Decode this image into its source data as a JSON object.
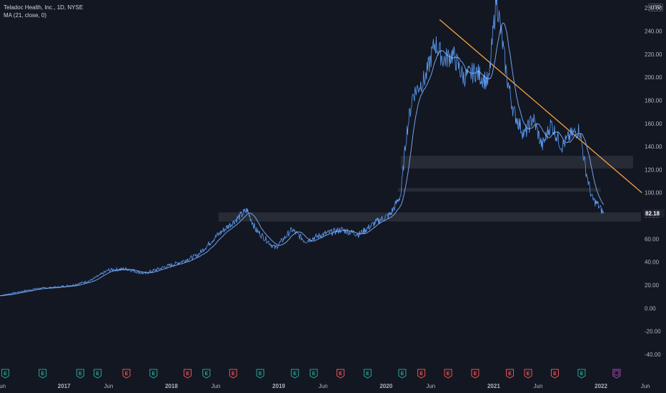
{
  "header": {
    "symbol_line": "Teladoc Health, Inc., 1D, NYSE",
    "indicator_line": "MA (21, close, 0)",
    "currency": "USD"
  },
  "chart_data": {
    "type": "line",
    "title": "Teladoc Health, Inc., 1D, NYSE",
    "series": [
      {
        "name": "",
        "color": "#5b9cf6",
        "x": [
          "2016-06-01",
          "2016-08-01",
          "2016-10-01",
          "2016-12-01",
          "2017-02-01",
          "2017-04-01",
          "2017-06-01",
          "2017-08-01",
          "2017-10-01",
          "2017-12-01",
          "2018-02-01",
          "2018-04-01",
          "2018-06-01",
          "2018-08-01",
          "2018-09-15",
          "2018-10-15",
          "2018-12-20",
          "2019-02-15",
          "2019-04-01",
          "2019-06-01",
          "2019-08-01",
          "2019-10-01",
          "2019-12-01",
          "2020-01-15",
          "2020-02-20",
          "2020-03-10",
          "2020-04-01",
          "2020-05-15",
          "2020-06-15",
          "2020-07-15",
          "2020-08-15",
          "2020-09-20",
          "2020-11-01",
          "2020-12-15",
          "2021-01-10",
          "2021-02-15",
          "2021-03-10",
          "2021-04-15",
          "2021-05-15",
          "2021-06-15",
          "2021-07-15",
          "2021-08-20",
          "2021-09-20",
          "2021-10-20",
          "2021-11-10",
          "2021-12-01",
          "2021-12-20",
          "2022-01-10"
        ],
        "y": [
          11,
          14,
          17,
          18,
          20,
          24,
          33,
          34,
          30,
          35,
          40,
          46,
          62,
          75,
          85,
          68,
          52,
          68,
          58,
          64,
          68,
          64,
          75,
          81,
          98,
          150,
          185,
          200,
          230,
          215,
          220,
          200,
          205,
          195,
          270,
          200,
          170,
          150,
          165,
          140,
          160,
          140,
          150,
          155,
          120,
          95,
          90,
          82
        ]
      }
    ],
    "ma_label": "MA (21, close, 0)",
    "yticks": [
      "-40.00",
      "-20.00",
      "0.00",
      "20.00",
      "40.00",
      "60.00",
      "80.00",
      "100.00",
      "120.00",
      "140.00",
      "160.00",
      "180.00",
      "200.00",
      "220.00",
      "240.00",
      "260.00"
    ],
    "xticks": [
      "Jun",
      "2017",
      "Jun",
      "2018",
      "Jun",
      "2019",
      "Jun",
      "2020",
      "Jun",
      "2021",
      "Jun",
      "2022",
      "Jun"
    ],
    "ylim": [
      -45,
      262
    ],
    "current_price": "82.18",
    "current_value": 82.18,
    "trendline": {
      "from": [
        "2020-07-01",
        250
      ],
      "to": [
        "2022-05-20",
        100
      ],
      "color": "#f7a23a"
    },
    "zones": [
      {
        "x_from": "2018-06-10",
        "x_to": "2022-12-31",
        "y_from": 75,
        "y_to": 83
      },
      {
        "x_from": "2020-02-20",
        "x_to": "2022-04-20",
        "y_from": 121,
        "y_to": 132
      },
      {
        "x_from": "2020-02-10",
        "x_to": "2021-12-31",
        "y_from": 101,
        "y_to": 104
      }
    ],
    "earnings": [
      {
        "date": "2016-06-15",
        "label": "E",
        "type": "positive"
      },
      {
        "date": "2016-10-20",
        "label": "E",
        "type": "positive"
      },
      {
        "date": "2017-02-25",
        "label": "E",
        "type": "positive"
      },
      {
        "date": "2017-04-25",
        "label": "E",
        "type": "positive"
      },
      {
        "date": "2017-08-01",
        "label": "E",
        "type": "negative"
      },
      {
        "date": "2017-11-01",
        "label": "E",
        "type": "positive"
      },
      {
        "date": "2018-02-25",
        "label": "E",
        "type": "negative"
      },
      {
        "date": "2018-04-30",
        "label": "E",
        "type": "positive"
      },
      {
        "date": "2018-07-30",
        "label": "E",
        "type": "negative"
      },
      {
        "date": "2018-10-30",
        "label": "E",
        "type": "positive"
      },
      {
        "date": "2019-02-25",
        "label": "E",
        "type": "positive"
      },
      {
        "date": "2019-04-30",
        "label": "E",
        "type": "positive"
      },
      {
        "date": "2019-07-30",
        "label": "E",
        "type": "negative"
      },
      {
        "date": "2019-10-30",
        "label": "E",
        "type": "positive"
      },
      {
        "date": "2020-02-25",
        "label": "E",
        "type": "positive"
      },
      {
        "date": "2020-04-30",
        "label": "E",
        "type": "negative"
      },
      {
        "date": "2020-07-30",
        "label": "E",
        "type": "negative"
      },
      {
        "date": "2020-10-30",
        "label": "E",
        "type": "negative"
      },
      {
        "date": "2021-02-25",
        "label": "E",
        "type": "negative"
      },
      {
        "date": "2021-04-28",
        "label": "E",
        "type": "negative"
      },
      {
        "date": "2021-07-28",
        "label": "E",
        "type": "negative"
      },
      {
        "date": "2021-10-27",
        "label": "E",
        "type": "positive"
      },
      {
        "date": "2022-02-23",
        "label": "",
        "type": "upcoming"
      }
    ],
    "colors": {
      "background": "#131722",
      "price": "#5b9cf6",
      "ma": "#8ab8ff",
      "zone": "#2a2e39",
      "earn_positive": "#26a69a",
      "earn_negative": "#ef5350",
      "earn_upcoming": "#ab47bc",
      "price_tag": "#1e222d"
    }
  }
}
